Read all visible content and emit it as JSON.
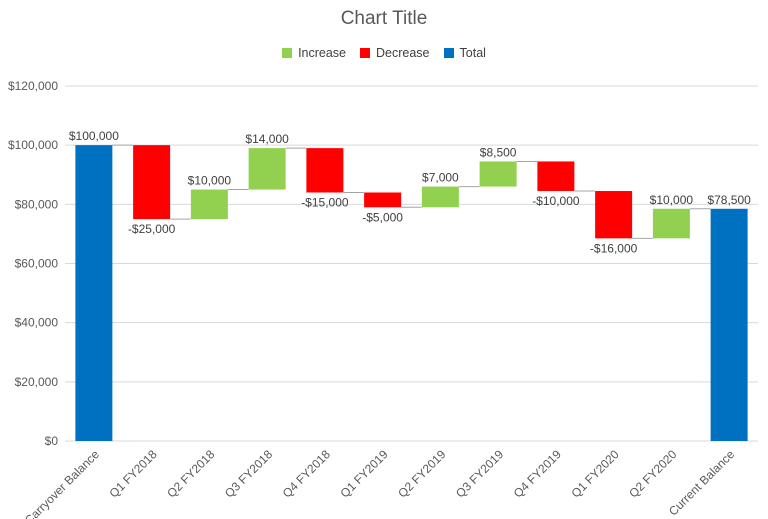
{
  "chart_data": {
    "type": "waterfall",
    "title": "Chart Title",
    "legend": {
      "placement": "top",
      "items": [
        {
          "name": "Increase",
          "color": "#92D050"
        },
        {
          "name": "Decrease",
          "color": "#FF0000"
        },
        {
          "name": "Total",
          "color": "#0070C0"
        }
      ]
    },
    "categories": [
      "Carryover Balance",
      "Q1 FY2018",
      "Q2 FY2018",
      "Q3 FY2018",
      "Q4 FY2018",
      "Q1 FY2019",
      "Q2 FY2019",
      "Q3 FY2019",
      "Q4 FY2019",
      "Q1 FY2020",
      "Q2 FY2020",
      "Current Balance"
    ],
    "values": [
      100000,
      -25000,
      10000,
      14000,
      -15000,
      -5000,
      7000,
      8500,
      -10000,
      -16000,
      10000,
      78500
    ],
    "kinds": [
      "total",
      "decrease",
      "increase",
      "increase",
      "decrease",
      "decrease",
      "increase",
      "increase",
      "decrease",
      "decrease",
      "increase",
      "total"
    ],
    "data_labels": [
      "$100,000",
      "-$25,000",
      "$10,000",
      "$14,000",
      "-$15,000",
      "-$5,000",
      "$7,000",
      "$8,500",
      "-$10,000",
      "-$16,000",
      "$10,000",
      "$78,500"
    ],
    "ylim": [
      0,
      120000
    ],
    "y_ticks": [
      0,
      20000,
      40000,
      60000,
      80000,
      100000,
      120000
    ],
    "y_tick_labels": [
      "$0",
      "$20,000",
      "$40,000",
      "$60,000",
      "$80,000",
      "$100,000",
      "$120,000"
    ],
    "grid": true,
    "colors": {
      "increase": "#92D050",
      "decrease": "#FF0000",
      "total": "#0070C0",
      "grid": "#D9D9D9",
      "connector": "#A6A6A6"
    }
  }
}
